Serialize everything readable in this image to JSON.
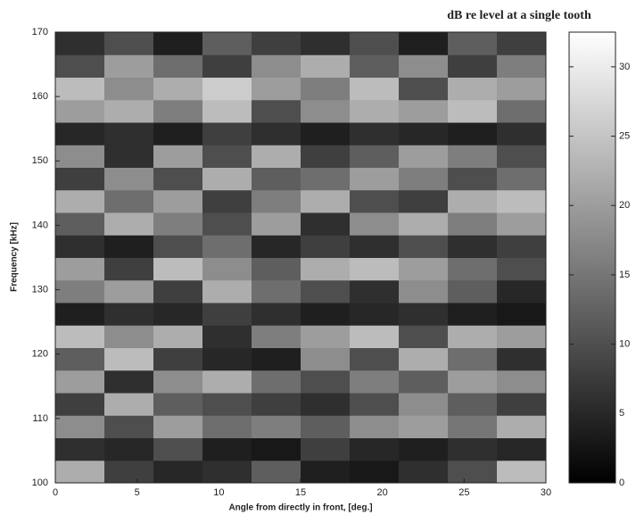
{
  "chart_data": {
    "type": "heatmap",
    "title": "dB re level at a single tooth",
    "x_label": "Angle from directly in front, [deg.]",
    "y_label": "Frequency [kHz]",
    "x": [
      1.5,
      4.5,
      7.5,
      10.5,
      13.5,
      16.5,
      19.5,
      22.5,
      25.5,
      28.5
    ],
    "y": [
      101.75,
      105.25,
      108.75,
      112.25,
      115.75,
      119.25,
      122.75,
      126.25,
      129.75,
      133.25,
      136.75,
      140.25,
      143.75,
      147.25,
      150.75,
      154.25,
      157.75,
      161.25,
      164.75,
      168.25
    ],
    "values": [
      [
        22,
        8,
        5,
        6,
        12,
        4,
        3,
        6,
        10,
        24
      ],
      [
        6,
        5,
        10,
        4,
        3,
        8,
        5,
        4,
        6,
        5
      ],
      [
        18,
        10,
        20,
        14,
        16,
        12,
        18,
        20,
        15,
        22
      ],
      [
        8,
        22,
        12,
        10,
        8,
        6,
        10,
        18,
        12,
        8
      ],
      [
        20,
        6,
        18,
        22,
        14,
        10,
        16,
        12,
        20,
        18
      ],
      [
        12,
        24,
        8,
        5,
        4,
        18,
        10,
        22,
        14,
        6
      ],
      [
        24,
        18,
        22,
        6,
        16,
        20,
        24,
        10,
        22,
        20
      ],
      [
        4,
        6,
        5,
        8,
        6,
        4,
        5,
        6,
        4,
        3
      ],
      [
        16,
        20,
        8,
        22,
        14,
        10,
        6,
        18,
        12,
        5
      ],
      [
        20,
        8,
        24,
        18,
        12,
        22,
        24,
        20,
        14,
        10
      ],
      [
        6,
        4,
        10,
        14,
        5,
        8,
        6,
        10,
        6,
        8
      ],
      [
        12,
        22,
        16,
        10,
        20,
        6,
        18,
        22,
        16,
        20
      ],
      [
        22,
        14,
        20,
        8,
        16,
        22,
        10,
        8,
        22,
        24
      ],
      [
        8,
        18,
        10,
        22,
        12,
        14,
        20,
        16,
        10,
        14
      ],
      [
        18,
        6,
        20,
        10,
        22,
        8,
        12,
        20,
        16,
        10
      ],
      [
        5,
        6,
        4,
        8,
        6,
        4,
        6,
        5,
        4,
        6
      ],
      [
        20,
        22,
        16,
        24,
        10,
        18,
        22,
        20,
        24,
        14
      ],
      [
        24,
        18,
        22,
        26,
        20,
        16,
        24,
        10,
        22,
        20
      ],
      [
        10,
        20,
        14,
        8,
        18,
        22,
        12,
        18,
        8,
        16
      ],
      [
        6,
        10,
        4,
        12,
        8,
        6,
        10,
        4,
        12,
        8
      ]
    ],
    "xlim": [
      0,
      30
    ],
    "xticks": [
      0,
      5,
      10,
      15,
      20,
      25,
      30
    ],
    "ylim": [
      100,
      170
    ],
    "yticks": [
      100,
      110,
      120,
      130,
      140,
      150,
      160,
      170
    ],
    "colormap": "gray",
    "clim": [
      0,
      32.5
    ],
    "cticks": [
      0,
      5,
      10,
      15,
      20,
      25,
      30
    ]
  }
}
